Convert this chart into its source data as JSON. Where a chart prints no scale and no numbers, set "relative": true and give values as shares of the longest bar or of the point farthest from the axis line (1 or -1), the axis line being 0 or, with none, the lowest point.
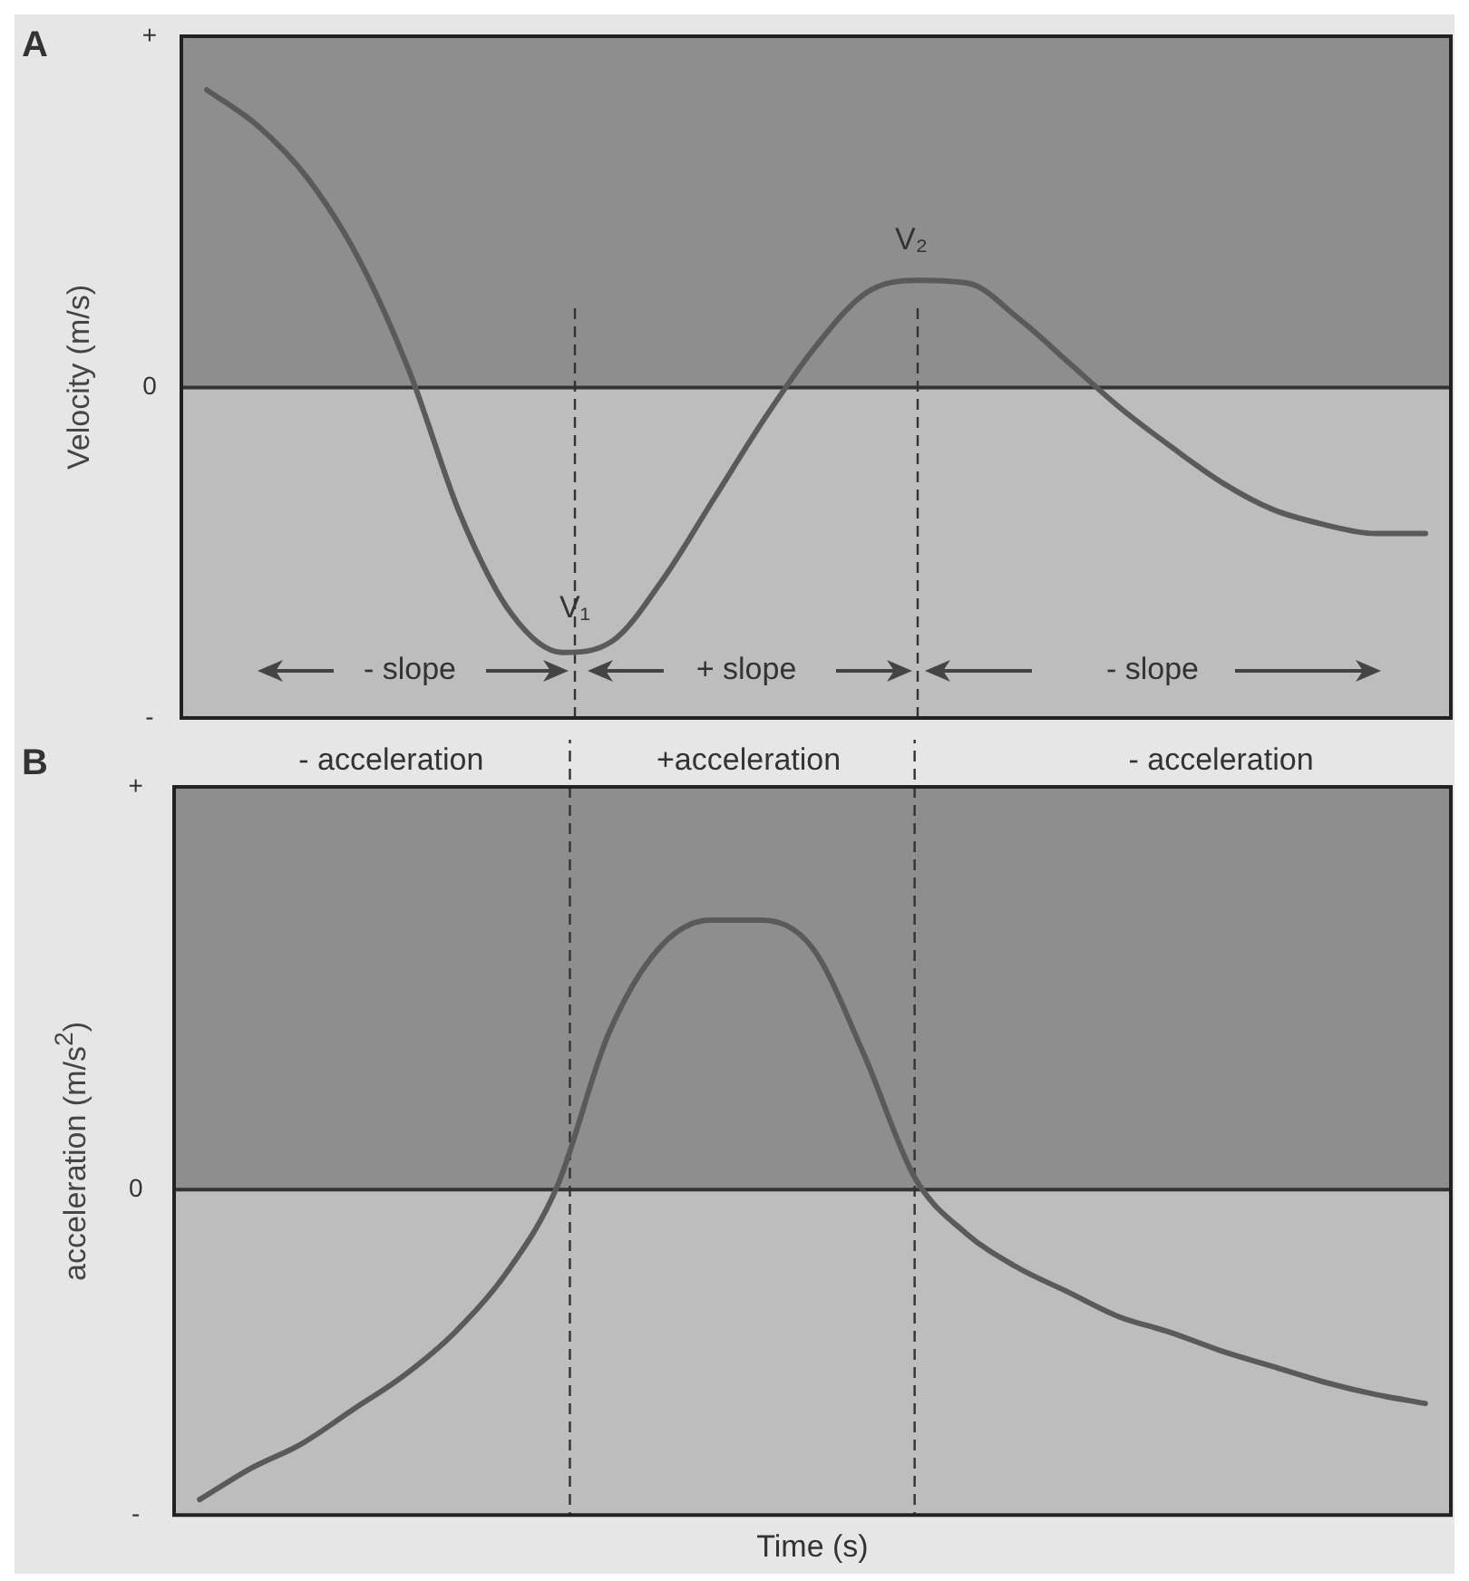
{
  "chart_data": [
    {
      "type": "line",
      "title": "A",
      "ylabel": "Velocity (m/s)",
      "relative": true,
      "categories": [
        null,
        null,
        null,
        null,
        null,
        null,
        null,
        null,
        null,
        null,
        null,
        null,
        null,
        null,
        null,
        null,
        null,
        null,
        null,
        null,
        null,
        null,
        null,
        null,
        null
      ],
      "series": [
        {
          "color": "#5a5a5a",
          "values": [
            1.0,
            0.88,
            0.7,
            0.43,
            0.05,
            -0.43,
            -0.76,
            -0.89,
            -0.85,
            -0.64,
            -0.37,
            -0.1,
            0.14,
            0.32,
            0.36,
            0.35,
            0.23,
            0.08,
            -0.07,
            -0.2,
            -0.32,
            -0.41,
            -0.46,
            -0.49,
            -0.49
          ]
        }
      ],
      "ref_lines": [
        {
          "axis": "y",
          "value": 0,
          "color": "#333333",
          "line_style": "solid"
        }
      ],
      "annotations": [
        "+",
        "0",
        "-",
        "V₁",
        "V₂",
        "- slope",
        "+ slope",
        "- slope"
      ],
      "marker": "none",
      "line_style": "solid",
      "grid": false,
      "legend": false
    },
    {
      "type": "line",
      "title": "B",
      "ylabel": "acceleration (m/s$^{2}$)",
      "xlabel": "Time (s)",
      "relative": true,
      "categories": [
        null,
        null,
        null,
        null,
        null,
        null,
        null,
        null,
        null,
        null,
        null,
        null,
        null,
        null,
        null,
        null,
        null,
        null,
        null,
        null,
        null,
        null,
        null,
        null,
        null
      ],
      "series": [
        {
          "color": "#5a5a5a",
          "values": [
            -1.0,
            -0.9,
            -0.82,
            -0.71,
            -0.6,
            -0.46,
            -0.27,
            0.01,
            0.5,
            0.78,
            0.87,
            0.87,
            0.78,
            0.44,
            0.04,
            -0.14,
            -0.25,
            -0.33,
            -0.41,
            -0.46,
            -0.52,
            -0.57,
            -0.62,
            -0.66,
            -0.69
          ]
        }
      ],
      "ref_lines": [
        {
          "axis": "y",
          "value": 0,
          "color": "#333333",
          "line_style": "solid"
        }
      ],
      "annotations": [
        "+",
        "0",
        "-",
        "- acceleration",
        "+acceleration",
        "- acceleration"
      ],
      "marker": "none",
      "line_style": "solid",
      "grid": false,
      "legend": false
    }
  ]
}
